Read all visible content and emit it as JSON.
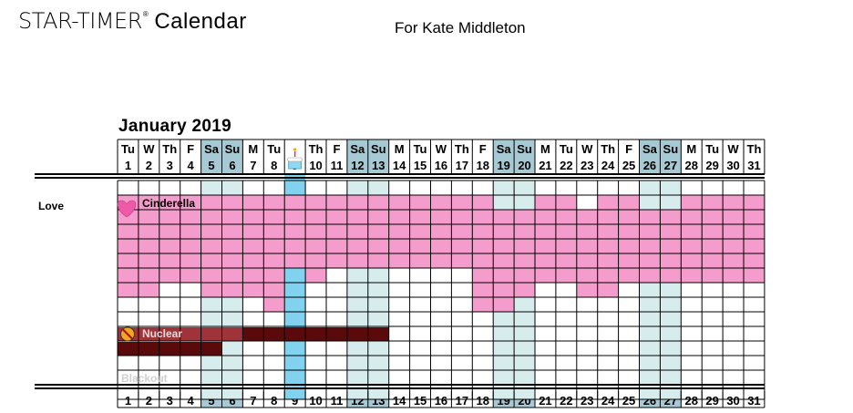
{
  "header": {
    "brand": "STAR-TIMER",
    "registered_mark": "®",
    "brand_word": "Calendar",
    "owner": "For Kate Middleton"
  },
  "month_title": "January 2019",
  "section_label": "Love",
  "colors": {
    "weekend": "#a6c9d3",
    "weekend_light": "#d7ecec",
    "today": "#80d2ee",
    "love": "#f49ccb",
    "nuclear_dark": "#5a0a0a",
    "nuclear_mid": "#9e3339",
    "heart": "#ef5aa8",
    "grid_line": "#000000"
  },
  "days": [
    {
      "num": "1",
      "wd": "Tu"
    },
    {
      "num": "2",
      "wd": "W"
    },
    {
      "num": "3",
      "wd": "Th"
    },
    {
      "num": "4",
      "wd": "F"
    },
    {
      "num": "5",
      "wd": "Sa",
      "weekend": true
    },
    {
      "num": "6",
      "wd": "Su",
      "weekend": true
    },
    {
      "num": "7",
      "wd": "M"
    },
    {
      "num": "8",
      "wd": "Tu"
    },
    {
      "num": "9",
      "wd": "",
      "today": true,
      "icon": "birthday-cake-icon"
    },
    {
      "num": "10",
      "wd": "Th"
    },
    {
      "num": "11",
      "wd": "F"
    },
    {
      "num": "12",
      "wd": "Sa",
      "weekend": true
    },
    {
      "num": "13",
      "wd": "Su",
      "weekend": true
    },
    {
      "num": "14",
      "wd": "M"
    },
    {
      "num": "15",
      "wd": "Tu"
    },
    {
      "num": "16",
      "wd": "W"
    },
    {
      "num": "17",
      "wd": "Th"
    },
    {
      "num": "18",
      "wd": "F"
    },
    {
      "num": "19",
      "wd": "Sa",
      "weekend": true
    },
    {
      "num": "20",
      "wd": "Su",
      "weekend": true
    },
    {
      "num": "21",
      "wd": "M"
    },
    {
      "num": "22",
      "wd": "Tu"
    },
    {
      "num": "23",
      "wd": "W"
    },
    {
      "num": "24",
      "wd": "Th"
    },
    {
      "num": "25",
      "wd": "F"
    },
    {
      "num": "26",
      "wd": "Sa",
      "weekend": true
    },
    {
      "num": "27",
      "wd": "Su",
      "weekend": true
    },
    {
      "num": "28",
      "wd": "M"
    },
    {
      "num": "29",
      "wd": "Tu"
    },
    {
      "num": "30",
      "wd": "W"
    },
    {
      "num": "31",
      "wd": "Th"
    }
  ],
  "rows": [
    {
      "type": "gap",
      "pink": []
    },
    {
      "type": "love",
      "label": "Cinderella",
      "icon": "heart-icon",
      "pink": [
        1,
        2,
        3,
        4,
        5,
        6,
        7,
        8,
        9,
        10,
        11,
        12,
        13,
        14,
        15,
        16,
        17,
        18,
        21,
        22,
        24,
        25,
        28,
        29,
        30,
        31
      ]
    },
    {
      "type": "love",
      "pink": [
        1,
        2,
        3,
        4,
        5,
        6,
        7,
        8,
        9,
        10,
        11,
        12,
        13,
        14,
        15,
        16,
        17,
        18,
        19,
        20,
        21,
        22,
        23,
        24,
        25,
        26,
        27,
        28,
        29,
        30,
        31
      ]
    },
    {
      "type": "love",
      "pink": [
        1,
        2,
        3,
        4,
        5,
        6,
        7,
        8,
        9,
        10,
        11,
        12,
        13,
        14,
        15,
        16,
        17,
        18,
        19,
        20,
        21,
        22,
        23,
        24,
        25,
        26,
        27,
        28,
        29,
        30,
        31
      ]
    },
    {
      "type": "love",
      "pink": [
        1,
        2,
        3,
        4,
        5,
        6,
        7,
        8,
        9,
        10,
        11,
        12,
        13,
        14,
        15,
        16,
        17,
        18,
        19,
        20,
        21,
        22,
        23,
        24,
        25,
        26,
        27,
        28,
        29,
        30,
        31
      ]
    },
    {
      "type": "love",
      "pink": [
        1,
        2,
        3,
        4,
        5,
        6,
        7,
        8,
        9,
        10,
        11,
        12,
        13,
        14,
        15,
        16,
        17,
        18,
        19,
        20,
        21,
        22,
        23,
        24,
        25,
        26,
        27,
        28,
        29,
        30,
        31
      ]
    },
    {
      "type": "love",
      "pink": [
        1,
        2,
        3,
        4,
        5,
        6,
        7,
        8,
        10,
        18,
        19,
        20,
        21,
        22,
        23,
        24,
        25,
        26,
        27,
        28,
        29,
        30,
        31
      ]
    },
    {
      "type": "love",
      "pink": [
        1,
        2,
        5,
        6,
        7,
        8,
        18,
        19,
        20,
        23,
        24
      ]
    },
    {
      "type": "love",
      "pink": [
        8,
        18,
        19
      ]
    },
    {
      "type": "gap",
      "pink": []
    },
    {
      "type": "nuclear",
      "label": "Nuclear",
      "icon": "nuclear-prohibited-icon",
      "spans": [
        {
          "from": 1,
          "to": 6,
          "tone": "mid"
        },
        {
          "from": 7,
          "to": 13,
          "tone": "dark"
        }
      ]
    },
    {
      "type": "nuclear",
      "spans": [
        {
          "from": 1,
          "to": 5,
          "tone": "dark"
        }
      ]
    },
    {
      "type": "gap",
      "pink": []
    },
    {
      "type": "blackout",
      "label": "Blackout",
      "pink": []
    },
    {
      "type": "gap",
      "pink": []
    }
  ]
}
